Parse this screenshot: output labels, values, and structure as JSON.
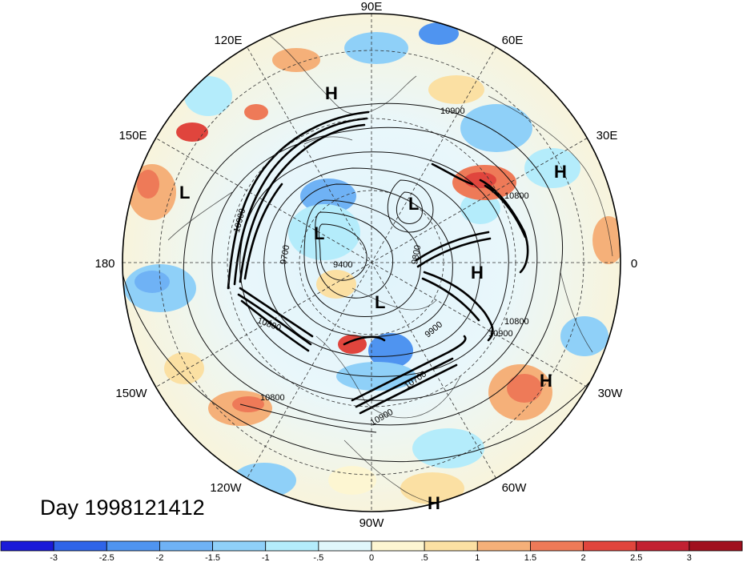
{
  "title": "Day 1998121412",
  "longitude_labels": {
    "n": "90E",
    "nne": "60E",
    "ne": "30E",
    "e": "0",
    "se": "30W",
    "sse": "60W",
    "s": "90W",
    "ssw": "120W",
    "sw": "150W",
    "w": "180",
    "nw": "150E",
    "nnw": "120E"
  },
  "pressure_centers": [
    {
      "label": "H"
    },
    {
      "label": "H"
    },
    {
      "label": "H"
    },
    {
      "label": "H"
    },
    {
      "label": "H"
    },
    {
      "label": "L"
    },
    {
      "label": "L"
    },
    {
      "label": "L"
    },
    {
      "label": "L"
    }
  ],
  "contour_labels": [
    "10900",
    "10900",
    "10900",
    "10800",
    "10800",
    "9700",
    "9400",
    "9800",
    "10800",
    "9900",
    "10700",
    "10900",
    "10800"
  ],
  "colorbar": {
    "tick_labels": [
      "-3",
      "-2.5",
      "-2",
      "-1.5",
      "-1",
      "-.5",
      "0",
      ".5",
      "1",
      "1.5",
      "2",
      "2.5",
      "3"
    ],
    "colors": [
      "#1a1ad8",
      "#2f64e8",
      "#4f94f0",
      "#6fb2f5",
      "#8fd0f8",
      "#b4ecfb",
      "#e0f7fb",
      "#fdf6d2",
      "#fbe0a3",
      "#f5b079",
      "#ee7a58",
      "#e0453d",
      "#c22132",
      "#a0101e"
    ]
  }
}
